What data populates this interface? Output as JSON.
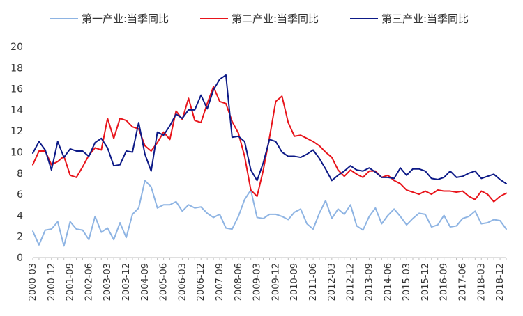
{
  "chart_data": {
    "type": "line",
    "title": "",
    "xlabel": "",
    "ylabel": "",
    "ylim": [
      0,
      20
    ],
    "yticks": [
      0,
      2,
      4,
      6,
      8,
      10,
      12,
      14,
      16,
      18,
      20
    ],
    "grid": false,
    "legend_position": "top",
    "x": [
      "2000-03",
      "2000-06",
      "2000-09",
      "2000-12",
      "2001-03",
      "2001-06",
      "2001-09",
      "2001-12",
      "2002-03",
      "2002-06",
      "2002-09",
      "2002-12",
      "2003-03",
      "2003-06",
      "2003-09",
      "2003-12",
      "2004-03",
      "2004-06",
      "2004-09",
      "2004-12",
      "2005-03",
      "2005-06",
      "2005-09",
      "2005-12",
      "2006-03",
      "2006-06",
      "2006-09",
      "2006-12",
      "2007-03",
      "2007-06",
      "2007-09",
      "2007-12",
      "2008-03",
      "2008-06",
      "2008-09",
      "2008-12",
      "2009-03",
      "2009-06",
      "2009-09",
      "2009-12",
      "2010-03",
      "2010-06",
      "2010-09",
      "2010-12",
      "2011-03",
      "2011-06",
      "2011-09",
      "2011-12",
      "2012-03",
      "2012-06",
      "2012-09",
      "2012-12",
      "2013-03",
      "2013-06",
      "2013-09",
      "2013-12",
      "2014-03",
      "2014-06",
      "2014-09",
      "2014-12",
      "2015-03",
      "2015-06",
      "2015-09",
      "2015-12",
      "2016-03",
      "2016-06",
      "2016-09",
      "2016-12",
      "2017-03",
      "2017-06",
      "2017-09",
      "2017-12",
      "2018-03",
      "2018-06",
      "2018-09",
      "2018-12",
      "2019-03"
    ],
    "xtick_labels": [
      "2000-03",
      "2000-12",
      "2001-09",
      "2002-06",
      "2003-03",
      "2003-12",
      "2004-09",
      "2005-06",
      "2006-03",
      "2006-12",
      "2007-09",
      "2008-06",
      "2009-03",
      "2009-12",
      "2010-09",
      "2011-06",
      "2012-03",
      "2012-12",
      "2013-09",
      "2014-06",
      "2015-03",
      "2015-12",
      "2016-09",
      "2017-06",
      "2018-03",
      "2018-12"
    ],
    "series": [
      {
        "name": "第一产业:当季同比",
        "color": "#8eb4e3",
        "values": [
          2.5,
          1.2,
          2.6,
          2.7,
          3.4,
          1.1,
          3.4,
          2.7,
          2.6,
          1.7,
          3.9,
          2.4,
          2.8,
          1.7,
          3.3,
          1.9,
          4.1,
          4.7,
          7.3,
          6.7,
          4.7,
          5.0,
          5.0,
          5.3,
          4.4,
          5.0,
          4.7,
          4.8,
          4.2,
          3.8,
          4.1,
          2.8,
          2.7,
          3.9,
          5.5,
          6.4,
          3.8,
          3.7,
          4.1,
          4.1,
          3.9,
          3.6,
          4.3,
          4.6,
          3.2,
          2.7,
          4.2,
          5.4,
          3.7,
          4.6,
          4.1,
          5.0,
          3.0,
          2.6,
          3.9,
          4.7,
          3.2,
          4.0,
          4.6,
          3.9,
          3.1,
          3.7,
          4.2,
          4.1,
          2.9,
          3.1,
          4.0,
          2.9,
          3.0,
          3.7,
          3.9,
          4.4,
          3.2,
          3.3,
          3.6,
          3.5,
          2.7
        ]
      },
      {
        "name": "第二产业:当季同比",
        "color": "#e8141b",
        "values": [
          8.8,
          10.1,
          10.1,
          8.8,
          9.1,
          9.6,
          7.8,
          7.6,
          8.6,
          9.7,
          10.4,
          10.2,
          13.2,
          11.3,
          13.2,
          13.0,
          12.4,
          12.2,
          10.6,
          10.1,
          10.9,
          11.9,
          11.2,
          13.9,
          13.1,
          15.1,
          13.0,
          12.8,
          14.6,
          16.2,
          14.8,
          14.6,
          12.9,
          11.8,
          9.6,
          6.4,
          5.8,
          8.3,
          11.4,
          14.8,
          15.3,
          12.8,
          11.5,
          11.6,
          11.3,
          11.0,
          10.6,
          10.0,
          9.5,
          8.3,
          7.7,
          8.3,
          7.9,
          7.6,
          8.2,
          8.2,
          7.6,
          7.8,
          7.3,
          7.0,
          6.4,
          6.2,
          6.0,
          6.3,
          6.0,
          6.4,
          6.3,
          6.3,
          6.2,
          6.3,
          5.8,
          5.5,
          6.3,
          6.0,
          5.3,
          5.8,
          6.1
        ]
      },
      {
        "name": "第三产业:当季同比",
        "color": "#0d1a87",
        "values": [
          9.9,
          11.0,
          10.2,
          8.3,
          11.0,
          9.5,
          10.3,
          10.1,
          10.1,
          9.6,
          10.9,
          11.3,
          10.4,
          8.7,
          8.8,
          10.1,
          10.0,
          12.8,
          9.8,
          8.2,
          11.9,
          11.6,
          12.5,
          13.6,
          13.2,
          14.0,
          14.0,
          15.4,
          14.1,
          15.9,
          16.9,
          17.3,
          11.4,
          11.5,
          11.0,
          8.3,
          7.3,
          9.0,
          11.2,
          11.0,
          10.0,
          9.6,
          9.6,
          9.5,
          9.8,
          10.2,
          9.4,
          8.4,
          7.3,
          7.8,
          8.2,
          8.7,
          8.3,
          8.2,
          8.5,
          8.1,
          7.6,
          7.6,
          7.5,
          8.5,
          7.8,
          8.4,
          8.4,
          8.2,
          7.5,
          7.4,
          7.6,
          8.2,
          7.6,
          7.7,
          8.0,
          8.2,
          7.5,
          7.7,
          7.9,
          7.4,
          7.0
        ]
      }
    ]
  }
}
